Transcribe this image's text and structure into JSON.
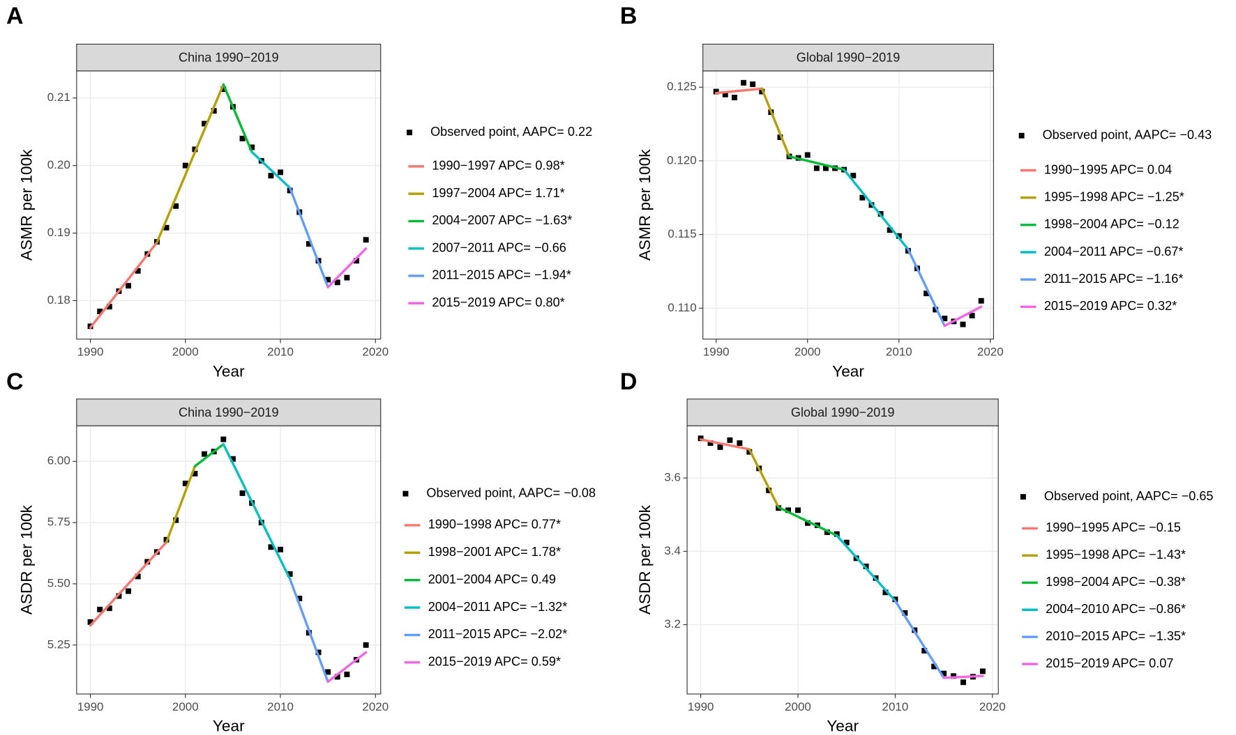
{
  "chart_data": [
    {
      "type": "line",
      "panel_label": "A",
      "title": "China 1990−2019",
      "xlabel": "Year",
      "ylabel": "ASMR per 100k",
      "xlim": [
        1988.55,
        2020.55
      ],
      "xticks": [
        1990,
        2000,
        2010,
        2020
      ],
      "ylim": [
        0.1743,
        0.214
      ],
      "yticks": [
        0.18,
        0.19,
        {
          "value": 0.2,
          "label": "0.20"
        },
        0.21
      ],
      "grid": true,
      "observed": {
        "name": "Observed point, AAPC= 0.22",
        "color": "#000000",
        "x": [
          1990,
          1991,
          1992,
          1993,
          1994,
          1995,
          1996,
          1997,
          1998,
          1999,
          2000,
          2001,
          2002,
          2003,
          2004,
          2005,
          2006,
          2007,
          2008,
          2009,
          2010,
          2011,
          2012,
          2013,
          2014,
          2015,
          2016,
          2017,
          2018,
          2019
        ],
        "values": [
          0.1762,
          0.1784,
          0.1791,
          0.1814,
          0.1822,
          0.1844,
          0.1869,
          0.1887,
          0.1908,
          0.194,
          0.2,
          0.2024,
          0.2062,
          0.2081,
          0.2113,
          0.2087,
          0.204,
          0.2027,
          0.2007,
          0.1985,
          0.199,
          0.1963,
          0.1931,
          0.1884,
          0.1859,
          0.1831,
          0.1827,
          0.1834,
          0.1859,
          0.189
        ]
      },
      "segments": [
        {
          "name": "1990−1997 APC= 0.98*",
          "color": "#F8766D",
          "x": [
            1990,
            1997
          ],
          "values": [
            0.176,
            0.1886
          ]
        },
        {
          "name": "1997−2004 APC= 1.71*",
          "color": "#B79F00",
          "x": [
            1997,
            2004
          ],
          "values": [
            0.1886,
            0.212
          ]
        },
        {
          "name": "2004−2007 APC= −1.63*",
          "color": "#00BA38",
          "x": [
            2004,
            2007
          ],
          "values": [
            0.212,
            0.202
          ]
        },
        {
          "name": "2007−2011 APC= −0.66",
          "color": "#00BFC4",
          "x": [
            2007,
            2011
          ],
          "values": [
            0.202,
            0.1967
          ]
        },
        {
          "name": "2011−2015 APC= −1.94*",
          "color": "#619CFF",
          "x": [
            2011,
            2015
          ],
          "values": [
            0.1967,
            0.182
          ]
        },
        {
          "name": "2015−2019 APC= 0.80*",
          "color": "#F564E3",
          "x": [
            2015,
            2019
          ],
          "values": [
            0.182,
            0.1877
          ]
        }
      ]
    },
    {
      "type": "line",
      "panel_label": "B",
      "title": "Global 1990−2019",
      "xlabel": "Year",
      "ylabel": "ASMR per 100k",
      "xlim": [
        1988.55,
        2020.35
      ],
      "xticks": [
        1990,
        2000,
        2010,
        2020
      ],
      "ylim": [
        0.1079,
        0.1261
      ],
      "yticks": [
        {
          "value": 0.11,
          "label": "0.110"
        },
        0.115,
        {
          "value": 0.12,
          "label": "0.120"
        },
        0.125
      ],
      "grid": true,
      "observed": {
        "name": "Observed point, AAPC= −0.43",
        "color": "#000000",
        "x": [
          1990,
          1991,
          1992,
          1993,
          1994,
          1995,
          1996,
          1997,
          1998,
          1999,
          2000,
          2001,
          2002,
          2003,
          2004,
          2005,
          2006,
          2007,
          2008,
          2009,
          2010,
          2011,
          2012,
          2013,
          2014,
          2015,
          2016,
          2017,
          2018,
          2019
        ],
        "values": [
          0.1247,
          0.1245,
          0.1243,
          0.1253,
          0.1252,
          0.1247,
          0.1233,
          0.1216,
          0.1203,
          0.1202,
          0.1204,
          0.1195,
          0.1195,
          0.1195,
          0.1194,
          0.119,
          0.1175,
          0.117,
          0.1164,
          0.1153,
          0.1149,
          0.1139,
          0.1127,
          0.111,
          0.1099,
          0.1093,
          0.1091,
          0.1089,
          0.1095,
          0.1105
        ]
      },
      "segments": [
        {
          "name": "1990−1995 APC= 0.04",
          "color": "#F8766D",
          "x": [
            1990,
            1995
          ],
          "values": [
            0.1246,
            0.1249
          ]
        },
        {
          "name": "1995−1998 APC= −1.25*",
          "color": "#B79F00",
          "x": [
            1995,
            1998
          ],
          "values": [
            0.1249,
            0.1203
          ]
        },
        {
          "name": "1998−2004 APC= −0.12",
          "color": "#00BA38",
          "x": [
            1998,
            2004
          ],
          "values": [
            0.1203,
            0.1194
          ]
        },
        {
          "name": "2004−2011 APC= −0.67*",
          "color": "#00BFC4",
          "x": [
            2004,
            2011
          ],
          "values": [
            0.1194,
            0.114
          ]
        },
        {
          "name": "2011−2015 APC= −1.16*",
          "color": "#619CFF",
          "x": [
            2011,
            2015
          ],
          "values": [
            0.114,
            0.1088
          ]
        },
        {
          "name": "2015−2019 APC= 0.32*",
          "color": "#F564E3",
          "x": [
            2015,
            2019
          ],
          "values": [
            0.1088,
            0.1101
          ]
        }
      ]
    },
    {
      "type": "line",
      "panel_label": "C",
      "title": "China 1990−2019",
      "xlabel": "Year",
      "ylabel": "ASDR per 100k",
      "xlim": [
        1988.55,
        2020.55
      ],
      "xticks": [
        1990,
        2000,
        2010,
        2020
      ],
      "ylim": [
        5.05,
        6.145
      ],
      "yticks": [
        5.25,
        {
          "value": 5.5,
          "label": "5.50"
        },
        5.75,
        {
          "value": 6,
          "label": "6.00"
        }
      ],
      "grid": true,
      "observed": {
        "name": "Observed point, AAPC= −0.08",
        "color": "#000000",
        "x": [
          1990,
          1991,
          1992,
          1993,
          1994,
          1995,
          1996,
          1997,
          1998,
          1999,
          2000,
          2001,
          2002,
          2003,
          2004,
          2005,
          2006,
          2007,
          2008,
          2009,
          2010,
          2011,
          2012,
          2013,
          2014,
          2015,
          2016,
          2017,
          2018,
          2019
        ],
        "values": [
          5.344,
          5.395,
          5.4,
          5.45,
          5.47,
          5.53,
          5.59,
          5.63,
          5.68,
          5.76,
          5.91,
          5.95,
          6.03,
          6.04,
          6.09,
          6.01,
          5.87,
          5.83,
          5.75,
          5.65,
          5.64,
          5.54,
          5.44,
          5.3,
          5.22,
          5.14,
          5.12,
          5.13,
          5.19,
          5.25
        ]
      },
      "segments": [
        {
          "name": "1990−1998 APC= 0.77*",
          "color": "#F8766D",
          "x": [
            1990,
            1998
          ],
          "values": [
            5.33,
            5.67
          ]
        },
        {
          "name": "1998−2001 APC= 1.78*",
          "color": "#B79F00",
          "x": [
            1998,
            2001
          ],
          "values": [
            5.67,
            5.98
          ]
        },
        {
          "name": "2001−2004 APC= 0.49",
          "color": "#00BA38",
          "x": [
            2001,
            2004
          ],
          "values": [
            5.98,
            6.07
          ]
        },
        {
          "name": "2004−2011 APC= −1.32*",
          "color": "#00BFC4",
          "x": [
            2004,
            2011
          ],
          "values": [
            6.07,
            5.52
          ]
        },
        {
          "name": "2011−2015 APC= −2.02*",
          "color": "#619CFF",
          "x": [
            2011,
            2015
          ],
          "values": [
            5.52,
            5.1
          ]
        },
        {
          "name": "2015−2019 APC= 0.59*",
          "color": "#F564E3",
          "x": [
            2015,
            2019
          ],
          "values": [
            5.1,
            5.22
          ]
        }
      ]
    },
    {
      "type": "line",
      "panel_label": "D",
      "title": "Global 1990−2019",
      "xlabel": "Year",
      "ylabel": "ASDR per 100k",
      "xlim": [
        1988.6,
        2020.6
      ],
      "xticks": [
        1990,
        2000,
        2010,
        2020
      ],
      "ylim": [
        3.011,
        3.742
      ],
      "yticks": [
        3.2,
        3.4,
        3.6
      ],
      "grid": true,
      "observed": {
        "name": "Observed point, AAPC= −0.65",
        "color": "#000000",
        "x": [
          1990,
          1991,
          1992,
          1993,
          1994,
          1995,
          1996,
          1997,
          1998,
          1999,
          2000,
          2001,
          2002,
          2003,
          2004,
          2005,
          2006,
          2007,
          2008,
          2009,
          2010,
          2011,
          2012,
          2013,
          2014,
          2015,
          2016,
          2017,
          2018,
          2019
        ],
        "values": [
          3.708,
          3.695,
          3.684,
          3.703,
          3.695,
          3.671,
          3.626,
          3.566,
          3.518,
          3.512,
          3.512,
          3.477,
          3.471,
          3.452,
          3.447,
          3.424,
          3.381,
          3.359,
          3.327,
          3.288,
          3.269,
          3.232,
          3.185,
          3.129,
          3.086,
          3.067,
          3.06,
          3.043,
          3.058,
          3.073
        ]
      },
      "segments": [
        {
          "name": "1990−1995 APC= −0.15",
          "color": "#F8766D",
          "x": [
            1990,
            1995
          ],
          "values": [
            3.705,
            3.678
          ]
        },
        {
          "name": "1995−1998 APC= −1.43*",
          "color": "#B79F00",
          "x": [
            1995,
            1998
          ],
          "values": [
            3.678,
            3.52
          ]
        },
        {
          "name": "1998−2004 APC= −0.38*",
          "color": "#00BA38",
          "x": [
            1998,
            2004
          ],
          "values": [
            3.52,
            3.443
          ]
        },
        {
          "name": "2004−2010 APC= −0.86*",
          "color": "#00BFC4",
          "x": [
            2004,
            2010
          ],
          "values": [
            3.443,
            3.265
          ]
        },
        {
          "name": "2010−2015 APC= −1.35*",
          "color": "#619CFF",
          "x": [
            2010,
            2015
          ],
          "values": [
            3.265,
            3.055
          ]
        },
        {
          "name": "2015−2019 APC= 0.07",
          "color": "#F564E3",
          "x": [
            2015,
            2019
          ],
          "values": [
            3.055,
            3.06
          ]
        }
      ]
    }
  ]
}
